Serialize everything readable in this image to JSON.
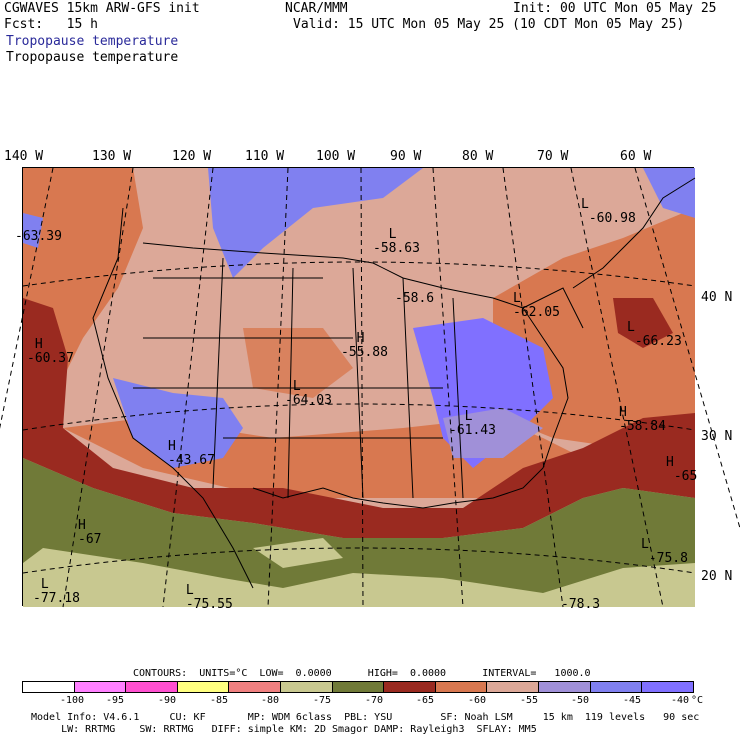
{
  "header": {
    "model": "CGWAVES 15km ARW-GFS init",
    "forecast": "Fcst:   15 h",
    "org": "NCAR/MMM",
    "init": "Init: 00 UTC Mon 05 May 25",
    "valid": "Valid: 15 UTC Mon 05 May 25 (10 CDT Mon 05 May 25)",
    "field_title_blue": "Tropopause temperature",
    "field_title_black": "Tropopause temperature",
    "colors": {
      "field_title_blue": "#2a2a9a"
    }
  },
  "map": {
    "longitude_labels": [
      "140 W",
      "130 W",
      "120 W",
      "110 W",
      "100 W",
      "90 W",
      "80 W",
      "70 W",
      "60 W"
    ],
    "latitude_labels": [
      "40 N",
      "30 N",
      "20 N"
    ],
    "pressure_centers": [
      {
        "type": "L",
        "value": "-58.63"
      },
      {
        "type": "L",
        "value": "-60.98"
      },
      {
        "type": "L",
        "value": "-62.05"
      },
      {
        "type": "L",
        "value": "-66.23"
      },
      {
        "type": "L",
        "value": "-64.03"
      },
      {
        "type": "L",
        "value": "-61.43"
      },
      {
        "type": "L",
        "value": "-77.18"
      },
      {
        "type": "L",
        "value": "-75.55"
      },
      {
        "type": "L",
        "value": "-75.8"
      },
      {
        "type": "H",
        "value": "-60.37"
      },
      {
        "type": "H",
        "value": "-55.88"
      },
      {
        "type": "H",
        "value": "-43.67"
      },
      {
        "type": "H",
        "value": "-67"
      },
      {
        "type": "H",
        "value": "-58.84"
      },
      {
        "type": "H",
        "value": "-65"
      }
    ],
    "partial_values": [
      "-63.39",
      "-58.6",
      "-78.3"
    ]
  },
  "contour_info": {
    "text": "CONTOURS:  UNITS=°C  LOW=  0.0000      HIGH=  0.0000      INTERVAL=   1000.0"
  },
  "legend": {
    "labels": [
      "-100",
      "-95",
      "-90",
      "-85",
      "-80",
      "-75",
      "-70",
      "-65",
      "-60",
      "-55",
      "-50",
      "-45",
      "-40",
      "°C"
    ],
    "colors": [
      "#ffffff",
      "#ff80ff",
      "#ff50d0",
      "#ffff80",
      "#f08080",
      "#c8c890",
      "#707a38",
      "#9a2a20",
      "#d87850",
      "#dca898",
      "#a090d8",
      "#8080f0",
      "#8070ff"
    ]
  },
  "footer": {
    "line1": "Model Info: V4.6.1     CU: KF       MP: WDM 6class  PBL: YSU        SF: Noah LSM     15 km  119 levels   90 sec",
    "line2": "     LW: RRTMG    SW: RRTMG   DIFF: simple KM: 2D Smagor DAMP: Rayleigh3  SFLAY: MM5"
  }
}
